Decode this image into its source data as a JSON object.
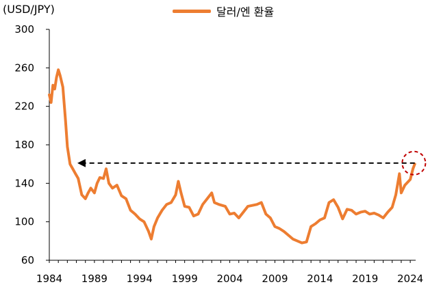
{
  "chart_data": {
    "type": "line",
    "unit_label": "(USD/JPY)",
    "title": "",
    "xlabel": "",
    "ylabel": "",
    "xlim": [
      1984.0,
      2024.6
    ],
    "ylim": [
      60,
      300
    ],
    "y_ticks": [
      "300",
      "260",
      "220",
      "180",
      "140",
      "100",
      "60"
    ],
    "x_ticks": [
      "1984",
      "1989",
      "1994",
      "1999",
      "2004",
      "2009",
      "2014",
      "2019",
      "2024"
    ],
    "grid": false,
    "legend_position": "top-center",
    "series": [
      {
        "name": "달러/엔 환율",
        "color": "#ED7D31",
        "x": [
          1984.0,
          1984.2,
          1984.4,
          1984.6,
          1984.8,
          1985.0,
          1985.2,
          1985.5,
          1985.8,
          1986.0,
          1986.3,
          1986.6,
          1986.9,
          1987.2,
          1987.6,
          1988.0,
          1988.3,
          1988.6,
          1989.0,
          1989.3,
          1989.6,
          1990.0,
          1990.3,
          1990.6,
          1991.0,
          1991.5,
          1992.0,
          1992.5,
          1993.0,
          1993.5,
          1994.0,
          1994.5,
          1995.0,
          1995.3,
          1995.6,
          1996.0,
          1996.5,
          1997.0,
          1997.5,
          1998.0,
          1998.3,
          1998.6,
          1999.0,
          1999.5,
          2000.0,
          2000.5,
          2001.0,
          2001.5,
          2002.0,
          2002.3,
          2002.8,
          2003.5,
          2004.0,
          2004.5,
          2005.0,
          2005.5,
          2006.0,
          2006.5,
          2007.0,
          2007.5,
          2008.0,
          2008.5,
          2009.0,
          2009.5,
          2010.0,
          2010.5,
          2011.0,
          2011.5,
          2012.0,
          2012.5,
          2013.0,
          2013.5,
          2014.0,
          2014.5,
          2015.0,
          2015.5,
          2016.0,
          2016.5,
          2017.0,
          2017.5,
          2018.0,
          2018.5,
          2019.0,
          2019.5,
          2020.0,
          2020.5,
          2021.0,
          2021.5,
          2022.0,
          2022.4,
          2022.8,
          2023.0,
          2023.4,
          2023.8,
          2024.0,
          2024.3,
          2024.5
        ],
        "values": [
          232,
          224,
          242,
          238,
          250,
          258,
          252,
          240,
          205,
          178,
          160,
          155,
          150,
          145,
          128,
          124,
          130,
          135,
          130,
          140,
          146,
          145,
          155,
          140,
          135,
          138,
          127,
          124,
          112,
          108,
          103,
          100,
          90,
          82,
          95,
          104,
          112,
          118,
          120,
          128,
          142,
          130,
          116,
          115,
          106,
          108,
          118,
          124,
          130,
          120,
          118,
          116,
          108,
          109,
          104,
          110,
          116,
          117,
          118,
          120,
          108,
          104,
          95,
          93,
          90,
          86,
          82,
          80,
          78,
          79,
          95,
          98,
          102,
          104,
          120,
          123,
          115,
          103,
          113,
          112,
          108,
          110,
          111,
          108,
          109,
          107,
          104,
          110,
          115,
          128,
          150,
          130,
          138,
          142,
          144,
          155,
          160
        ]
      }
    ],
    "reference": {
      "type": "dashed-arrow",
      "from": [
        2024.5,
        161
      ],
      "to": [
        1987.2,
        161
      ],
      "color": "#000000"
    },
    "highlight": {
      "type": "dashed-circle",
      "center": [
        2024.4,
        161
      ],
      "color": "#C00000"
    }
  }
}
